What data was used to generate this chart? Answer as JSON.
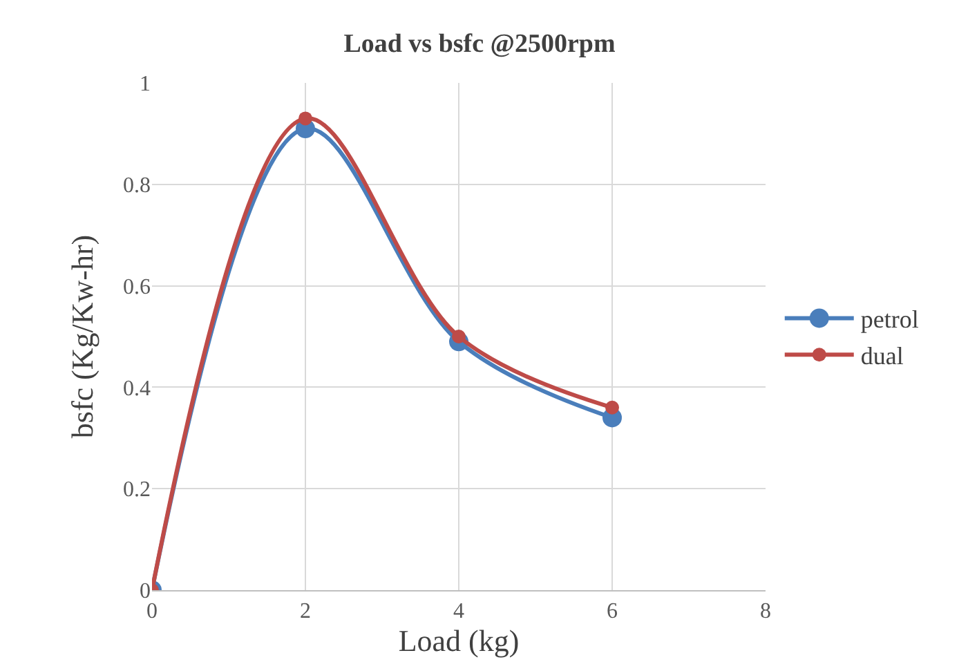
{
  "chart_data": {
    "type": "line",
    "title": "Load vs bsfc @2500rpm",
    "xlabel": "Load (kg)",
    "ylabel": "bsfc (Kg/Kw-hr)",
    "x": [
      0,
      2,
      4,
      6
    ],
    "series": [
      {
        "name": "petrol",
        "color": "#4a7ebb",
        "values": [
          0,
          0.91,
          0.49,
          0.34
        ]
      },
      {
        "name": "dual",
        "color": "#be4b48",
        "values": [
          0,
          0.93,
          0.5,
          0.36
        ]
      }
    ],
    "xlim": [
      0,
      8
    ],
    "xticks": [
      0,
      2,
      4,
      6,
      8
    ],
    "ylim": [
      0,
      1
    ],
    "yticks": [
      0,
      0.2,
      0.4,
      0.6,
      0.8,
      1
    ],
    "grid": true,
    "legend": "right",
    "marker": "circle",
    "line_style": "solid"
  }
}
